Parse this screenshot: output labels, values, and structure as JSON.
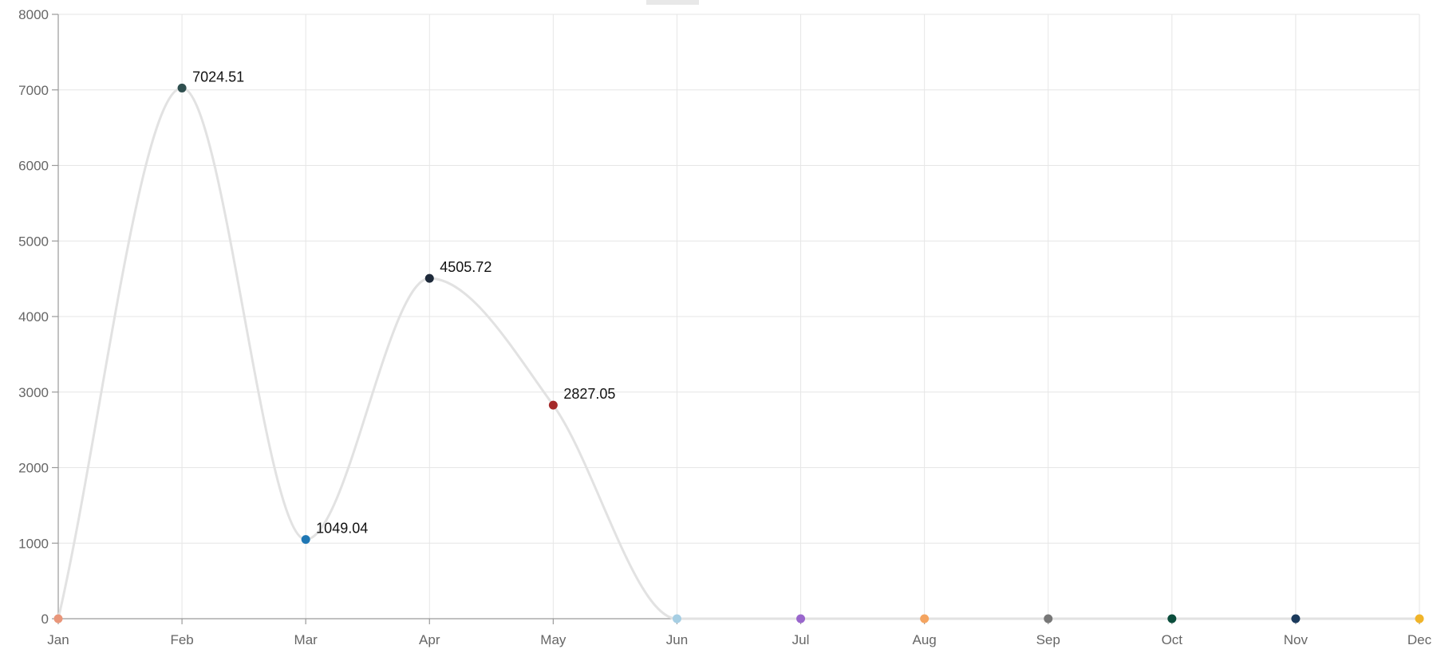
{
  "chart_data": {
    "type": "line",
    "categories": [
      "Jan",
      "Feb",
      "Mar",
      "Apr",
      "May",
      "Jun",
      "Jul",
      "Aug",
      "Sep",
      "Oct",
      "Nov",
      "Dec"
    ],
    "series": [
      {
        "values": [
          0,
          7024.51,
          1049.04,
          4505.72,
          2827.05,
          0,
          0,
          0,
          0,
          0,
          0,
          0
        ],
        "line_color": "#e2e2e2",
        "point_colors": [
          "#e9967a",
          "#2f4f4f",
          "#1f77b4",
          "#1e2a3a",
          "#a52a2a",
          "#a6cee3",
          "#9966cc",
          "#f4a460",
          "#777777",
          "#0b4d3c",
          "#1b3a5c",
          "#f0b429"
        ]
      }
    ],
    "data_labels": [
      "",
      "7024.51",
      "1049.04",
      "4505.72",
      "2827.05",
      "",
      "",
      "",
      "",
      "",
      "",
      ""
    ],
    "yticks": [
      "0",
      "1000",
      "2000",
      "3000",
      "4000",
      "5000",
      "6000",
      "7000",
      "8000"
    ],
    "ylim": [
      0,
      8000
    ],
    "grid": true,
    "legend": "top-center",
    "curve": "smooth"
  }
}
